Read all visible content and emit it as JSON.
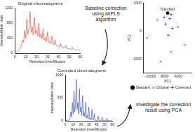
{
  "chart_data": [
    {
      "type": "line",
      "title": "Original chromatograms",
      "x_label": "Retention time/Minutes",
      "y_label": "Intensity/Arbitr Units",
      "x": [
        0,
        1,
        2,
        3,
        4,
        5,
        6,
        7,
        8,
        9,
        10,
        11,
        12,
        13,
        14,
        15,
        16,
        17,
        18,
        19,
        20,
        21,
        22,
        23,
        24,
        25,
        26,
        27,
        28,
        29,
        30,
        31,
        32,
        33,
        34,
        35,
        36,
        37,
        38,
        39,
        40,
        41,
        42,
        43,
        44,
        45,
        46,
        47,
        48,
        49,
        50,
        51,
        52,
        53,
        54,
        55,
        56,
        57,
        58,
        59,
        60
      ],
      "series": [
        {
          "color": "#e0301e",
          "values": [
            20,
            30,
            40,
            60,
            80,
            120,
            200,
            350,
            280,
            600,
            400,
            900,
            500,
            650,
            1100,
            550,
            700,
            480,
            950,
            520,
            600,
            450,
            800,
            420,
            500,
            380,
            650,
            350,
            400,
            300,
            550,
            280,
            300,
            250,
            450,
            230,
            220,
            350,
            200,
            190,
            180,
            170,
            260,
            160,
            150,
            140,
            140,
            200,
            130,
            120,
            110,
            110,
            100,
            150,
            95,
            90,
            85,
            80,
            80,
            75,
            70
          ]
        }
      ],
      "xlim": [
        0,
        60
      ],
      "xticks": [
        0,
        10,
        20,
        30,
        40,
        50,
        60
      ],
      "ylim": [
        0,
        1200
      ],
      "yticks": [
        0,
        400,
        800,
        1200
      ],
      "grid": false
    },
    {
      "type": "line",
      "title": "Corrected chromatograms",
      "x_label": "Retention time/Minutes",
      "y_label": "Intensity/Arbitr Units",
      "x": [
        0,
        1,
        2,
        3,
        4,
        5,
        6,
        7,
        8,
        9,
        10,
        11,
        12,
        13,
        14,
        15,
        16,
        17,
        18,
        19,
        20,
        21,
        22,
        23,
        24,
        25,
        26,
        27,
        28,
        29,
        30,
        31,
        32,
        33,
        34,
        35,
        36,
        37,
        38,
        39,
        40,
        41,
        42,
        43,
        44,
        45,
        46,
        47,
        48,
        49,
        50,
        51,
        52,
        53,
        54,
        55,
        56,
        57,
        58,
        59,
        60
      ],
      "series": [
        {
          "color": "#1c3fc0",
          "values": [
            0,
            5,
            5,
            10,
            10,
            20,
            60,
            200,
            80,
            400,
            150,
            650,
            200,
            350,
            900,
            250,
            400,
            150,
            700,
            200,
            300,
            120,
            550,
            100,
            180,
            80,
            400,
            60,
            120,
            40,
            300,
            30,
            60,
            20,
            250,
            20,
            20,
            160,
            10,
            10,
            10,
            10,
            100,
            5,
            5,
            5,
            5,
            80,
            5,
            5,
            5,
            5,
            5,
            60,
            5,
            5,
            5,
            0,
            5,
            0,
            0
          ]
        }
      ],
      "xlim": [
        0,
        60
      ],
      "xticks": [
        0,
        10,
        20,
        30,
        40,
        50,
        60
      ],
      "ylim": [
        0,
        1000
      ],
      "yticks": [
        0,
        500,
        1000
      ],
      "grid": false
    },
    {
      "type": "scatter",
      "x_label": "PC1",
      "y_label": "PC2",
      "series": [
        {
          "name": "Standard",
          "color": "#000000",
          "marker": "circle",
          "x": [
            -7500
          ],
          "values": [
            1300
          ]
        },
        {
          "name": "Original",
          "color": "#e0301e",
          "marker": "crossRot",
          "x": [
            -10500,
            -9000,
            -7000,
            -8500,
            -6000,
            -5000
          ],
          "values": [
            -500,
            800,
            -1500,
            -2200,
            300,
            -1000
          ]
        },
        {
          "name": "Corrected",
          "color": "#1c3fc0",
          "marker": "cross",
          "x": [
            -7200,
            -7800,
            -6800,
            -7400,
            -8000,
            -7000
          ],
          "values": [
            900,
            500,
            200,
            -300,
            1000,
            1200
          ]
        }
      ],
      "xlim": [
        -11000,
        -4000
      ],
      "xticks": [
        -10000,
        -8000,
        -6000
      ],
      "ylim": [
        -3000,
        2000
      ],
      "yticks": [
        -2000,
        0,
        2000
      ],
      "grid": false,
      "legend": "bottom",
      "annotations": [
        {
          "text": "Standard",
          "x": -7500,
          "y": 1300
        }
      ]
    }
  ],
  "diagram": {
    "steps": [
      {
        "label": "Baseline correction using airPLS algorithm"
      },
      {
        "label": "Investigate the correction result using PCA"
      }
    ]
  }
}
